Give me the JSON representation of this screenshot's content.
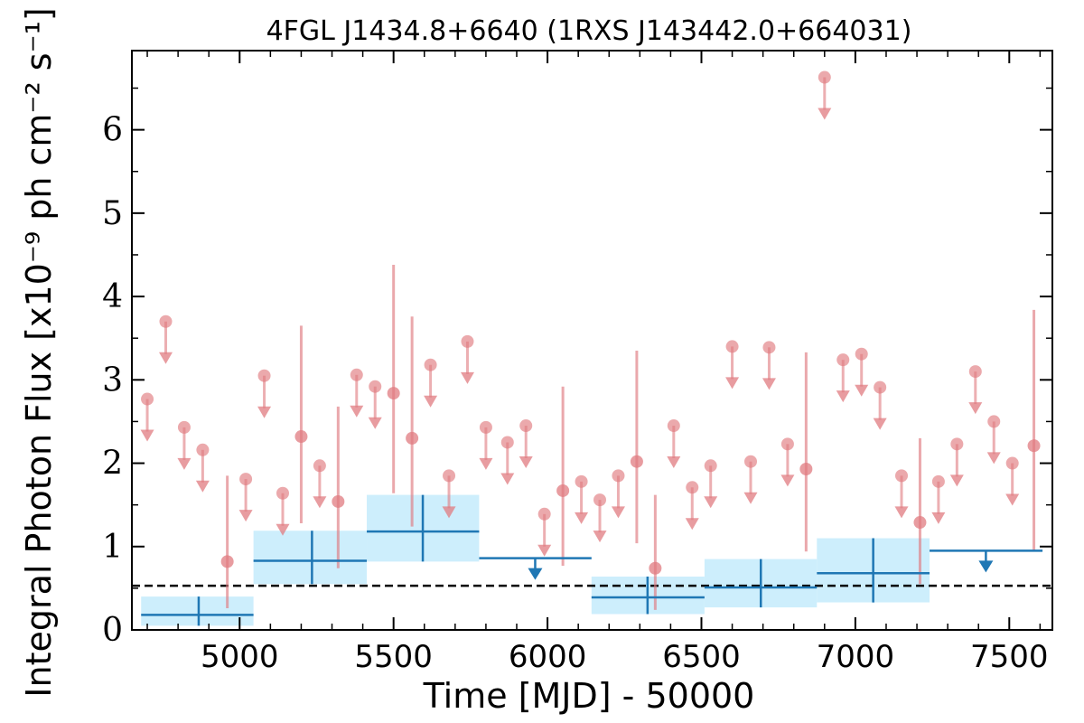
{
  "chart_data": {
    "type": "scatter",
    "title": "4FGL J1434.8+6640 (1RXS J143442.0+664031)",
    "xlabel": "Time [MJD] - 50000",
    "ylabel": "Integral Photon Flux [x10⁻⁹ ph cm⁻² s⁻¹]",
    "xlim": [
      4650,
      7640
    ],
    "ylim": [
      0,
      6.95
    ],
    "xticks": [
      5000,
      5500,
      6000,
      6500,
      7000,
      7500
    ],
    "xtick_labels": [
      "5000",
      "5500",
      "6000",
      "6500",
      "7000",
      "7500"
    ],
    "yticks": [
      0,
      1,
      2,
      3,
      4,
      5,
      6
    ],
    "ytick_labels": [
      "0",
      "1",
      "2",
      "3",
      "4",
      "5",
      "6"
    ],
    "reference_level": 0.53,
    "colors": {
      "fine": "#e07b80",
      "coarse": "#1f77b4",
      "band": "#cdeefc"
    },
    "series": [
      {
        "kind": "fine_bins",
        "measurements": [
          {
            "x": 4960,
            "y": 0.82,
            "ylo": 0.26,
            "yhi": 1.85
          },
          {
            "x": 5200,
            "y": 2.32,
            "ylo": 1.28,
            "yhi": 3.65
          },
          {
            "x": 5320,
            "y": 1.54,
            "ylo": 0.74,
            "yhi": 2.68
          },
          {
            "x": 5500,
            "y": 2.84,
            "ylo": 1.64,
            "yhi": 4.38
          },
          {
            "x": 5560,
            "y": 2.3,
            "ylo": 1.24,
            "yhi": 3.76
          },
          {
            "x": 6050,
            "y": 1.67,
            "ylo": 0.77,
            "yhi": 2.92
          },
          {
            "x": 6290,
            "y": 2.02,
            "ylo": 1.04,
            "yhi": 3.35
          },
          {
            "x": 6350,
            "y": 0.74,
            "ylo": 0.24,
            "yhi": 1.62
          },
          {
            "x": 6840,
            "y": 1.93,
            "ylo": 0.94,
            "yhi": 3.33
          },
          {
            "x": 7210,
            "y": 1.29,
            "ylo": 0.55,
            "yhi": 2.3
          },
          {
            "x": 7580,
            "y": 2.21,
            "ylo": 0.96,
            "yhi": 3.84
          }
        ],
        "upper_limits": [
          {
            "x": 4700,
            "y": 2.77
          },
          {
            "x": 4760,
            "y": 3.7
          },
          {
            "x": 4820,
            "y": 2.43
          },
          {
            "x": 4880,
            "y": 2.16
          },
          {
            "x": 5020,
            "y": 1.81
          },
          {
            "x": 5080,
            "y": 3.05
          },
          {
            "x": 5140,
            "y": 1.64
          },
          {
            "x": 5260,
            "y": 1.97
          },
          {
            "x": 5380,
            "y": 3.06
          },
          {
            "x": 5440,
            "y": 2.92
          },
          {
            "x": 5620,
            "y": 3.18
          },
          {
            "x": 5680,
            "y": 1.85
          },
          {
            "x": 5740,
            "y": 3.46
          },
          {
            "x": 5800,
            "y": 2.43
          },
          {
            "x": 5870,
            "y": 2.25
          },
          {
            "x": 5930,
            "y": 2.45
          },
          {
            "x": 5990,
            "y": 1.39
          },
          {
            "x": 6110,
            "y": 1.78
          },
          {
            "x": 6170,
            "y": 1.56
          },
          {
            "x": 6230,
            "y": 1.85
          },
          {
            "x": 6410,
            "y": 2.45
          },
          {
            "x": 6470,
            "y": 1.71
          },
          {
            "x": 6530,
            "y": 1.97
          },
          {
            "x": 6600,
            "y": 3.4
          },
          {
            "x": 6660,
            "y": 2.02
          },
          {
            "x": 6720,
            "y": 3.39
          },
          {
            "x": 6780,
            "y": 2.23
          },
          {
            "x": 6900,
            "y": 6.63
          },
          {
            "x": 6960,
            "y": 3.24
          },
          {
            "x": 7020,
            "y": 3.31
          },
          {
            "x": 7080,
            "y": 2.91
          },
          {
            "x": 7150,
            "y": 1.85
          },
          {
            "x": 7270,
            "y": 1.78
          },
          {
            "x": 7330,
            "y": 2.23
          },
          {
            "x": 7390,
            "y": 3.1
          },
          {
            "x": 7450,
            "y": 2.5
          },
          {
            "x": 7510,
            "y": 2.0
          }
        ]
      },
      {
        "kind": "coarse_bins",
        "measurements": [
          {
            "x": 4867,
            "x0": 4680,
            "x1": 5045,
            "y": 0.18,
            "ylo": 0.05,
            "yhi": 0.4
          },
          {
            "x": 5235,
            "x0": 5045,
            "x1": 5413,
            "y": 0.83,
            "ylo": 0.55,
            "yhi": 1.19
          },
          {
            "x": 5595,
            "x0": 5413,
            "x1": 5778,
            "y": 1.18,
            "ylo": 0.82,
            "yhi": 1.62
          },
          {
            "x": 6325,
            "x0": 6143,
            "x1": 6510,
            "y": 0.39,
            "ylo": 0.19,
            "yhi": 0.64
          },
          {
            "x": 6693,
            "x0": 6510,
            "x1": 6875,
            "y": 0.51,
            "ylo": 0.27,
            "yhi": 0.85
          },
          {
            "x": 7058,
            "x0": 6875,
            "x1": 7241,
            "y": 0.68,
            "ylo": 0.33,
            "yhi": 1.1
          }
        ],
        "upper_limits": [
          {
            "x": 5960,
            "x0": 5778,
            "x1": 6143,
            "y": 0.86
          },
          {
            "x": 7424,
            "x0": 7241,
            "x1": 7608,
            "y": 0.95
          }
        ]
      }
    ]
  }
}
